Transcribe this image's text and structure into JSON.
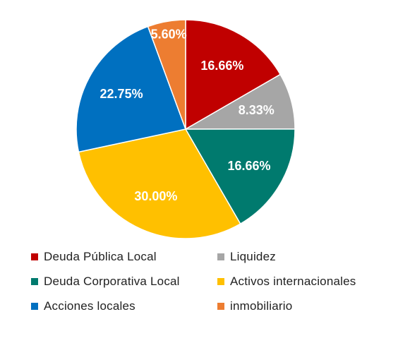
{
  "chart_data": {
    "type": "pie",
    "categories": [
      "Deuda Pública Local",
      "Liquidez",
      "Deuda Corporativa Local",
      "Activos internacionales",
      "Acciones locales",
      "inmobiliario"
    ],
    "values": [
      16.66,
      8.33,
      16.66,
      30.0,
      22.75,
      5.6
    ],
    "labels": [
      "16.66%",
      "8.33%",
      "16.66%",
      "30.00%",
      "22.75%",
      "5.60%"
    ],
    "colors": [
      "#C00000",
      "#A6A6A6",
      "#007A6E",
      "#FFC000",
      "#0070C0",
      "#ED7D31"
    ],
    "legend_position": "bottom",
    "start_angle": "top (12 o'clock), clockwise"
  }
}
